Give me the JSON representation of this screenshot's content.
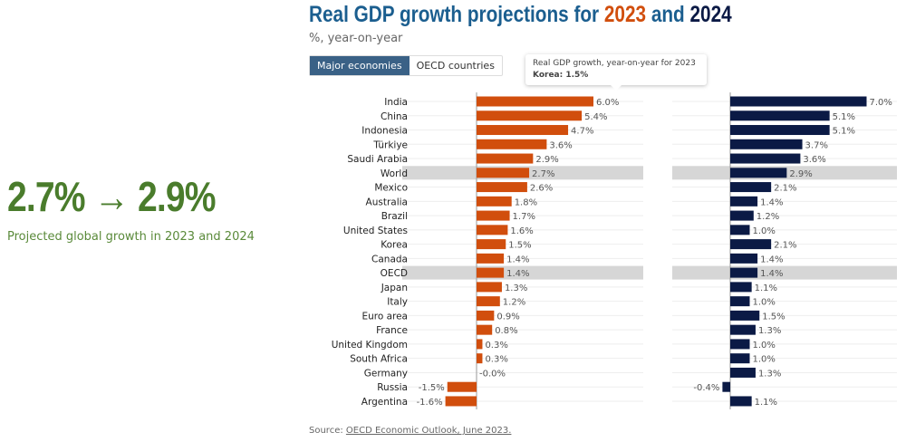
{
  "kpi": {
    "value": "2.7% → 2.9%",
    "caption": "Projected global growth in 2023 and 2024"
  },
  "header": {
    "title_prefix": "Real GDP growth projections for ",
    "year1": "2023",
    "title_mid": " and ",
    "year2": "2024",
    "subtitle": "%, year-on-year"
  },
  "tabs": [
    {
      "label": "Major economies",
      "active": true
    },
    {
      "label": "OECD countries",
      "active": false
    }
  ],
  "tooltip": {
    "title": "Real GDP growth, year-on-year for 2023",
    "body": "Korea: 1.5%"
  },
  "source": {
    "prefix": "Source: ",
    "link": "OECD Economic Outlook, June 2023."
  },
  "colors": {
    "2023": "#d14e0d",
    "2024": "#0b1a45",
    "highlight": "#d6d6d6"
  },
  "chart_data": {
    "type": "bar",
    "orientation": "horizontal",
    "categories": [
      "India",
      "China",
      "Indonesia",
      "Türkiye",
      "Saudi Arabia",
      "World",
      "Mexico",
      "Australia",
      "Brazil",
      "United States",
      "Korea",
      "Canada",
      "OECD",
      "Japan",
      "Italy",
      "Euro area",
      "France",
      "United Kingdom",
      "South Africa",
      "Germany",
      "Russia",
      "Argentina"
    ],
    "highlighted": [
      "World",
      "OECD"
    ],
    "series": [
      {
        "name": "2023",
        "values": [
          6.0,
          5.4,
          4.7,
          3.6,
          2.9,
          2.7,
          2.6,
          1.8,
          1.7,
          1.6,
          1.5,
          1.4,
          1.4,
          1.3,
          1.2,
          0.9,
          0.8,
          0.3,
          0.3,
          -0.0,
          -1.5,
          -1.6
        ]
      },
      {
        "name": "2024",
        "values": [
          7.0,
          5.1,
          5.1,
          3.7,
          3.6,
          2.9,
          2.1,
          1.4,
          1.2,
          1.0,
          2.1,
          1.4,
          1.4,
          1.1,
          1.0,
          1.5,
          1.3,
          1.0,
          1.0,
          1.3,
          -0.4,
          1.1
        ]
      }
    ],
    "unit": "%"
  }
}
